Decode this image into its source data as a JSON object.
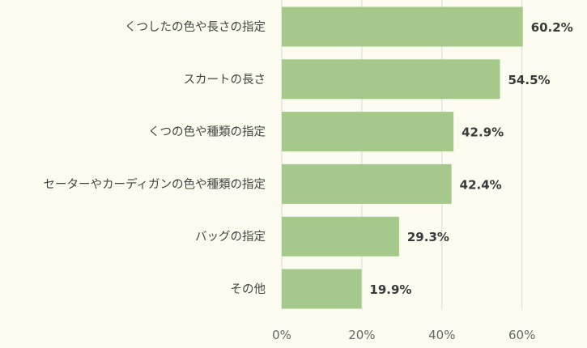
{
  "chart_data": {
    "type": "bar",
    "orientation": "horizontal",
    "categories": [
      "くつしたの色や長さの指定",
      "スカートの長さ",
      "くつの色や種類の指定",
      "セーターやカーディガンの色や種類の指定",
      "バッグの指定",
      "その他"
    ],
    "values": [
      60.2,
      54.5,
      42.9,
      42.4,
      29.3,
      19.9
    ],
    "value_labels": [
      "60.2%",
      "54.5%",
      "42.9%",
      "42.4%",
      "29.3%",
      "19.9%"
    ],
    "xlim": [
      0,
      60
    ],
    "xticks": [
      0,
      20,
      40,
      60
    ],
    "xtick_labels": [
      "0%",
      "20%",
      "40%",
      "60%"
    ],
    "title": "",
    "xlabel": "",
    "ylabel": "",
    "grid": "vertical",
    "legend": "none",
    "colors": {
      "bar": "#a5c98a",
      "background": "#fcfbef",
      "grid": "#d9d9d9",
      "text": "#444444"
    }
  }
}
